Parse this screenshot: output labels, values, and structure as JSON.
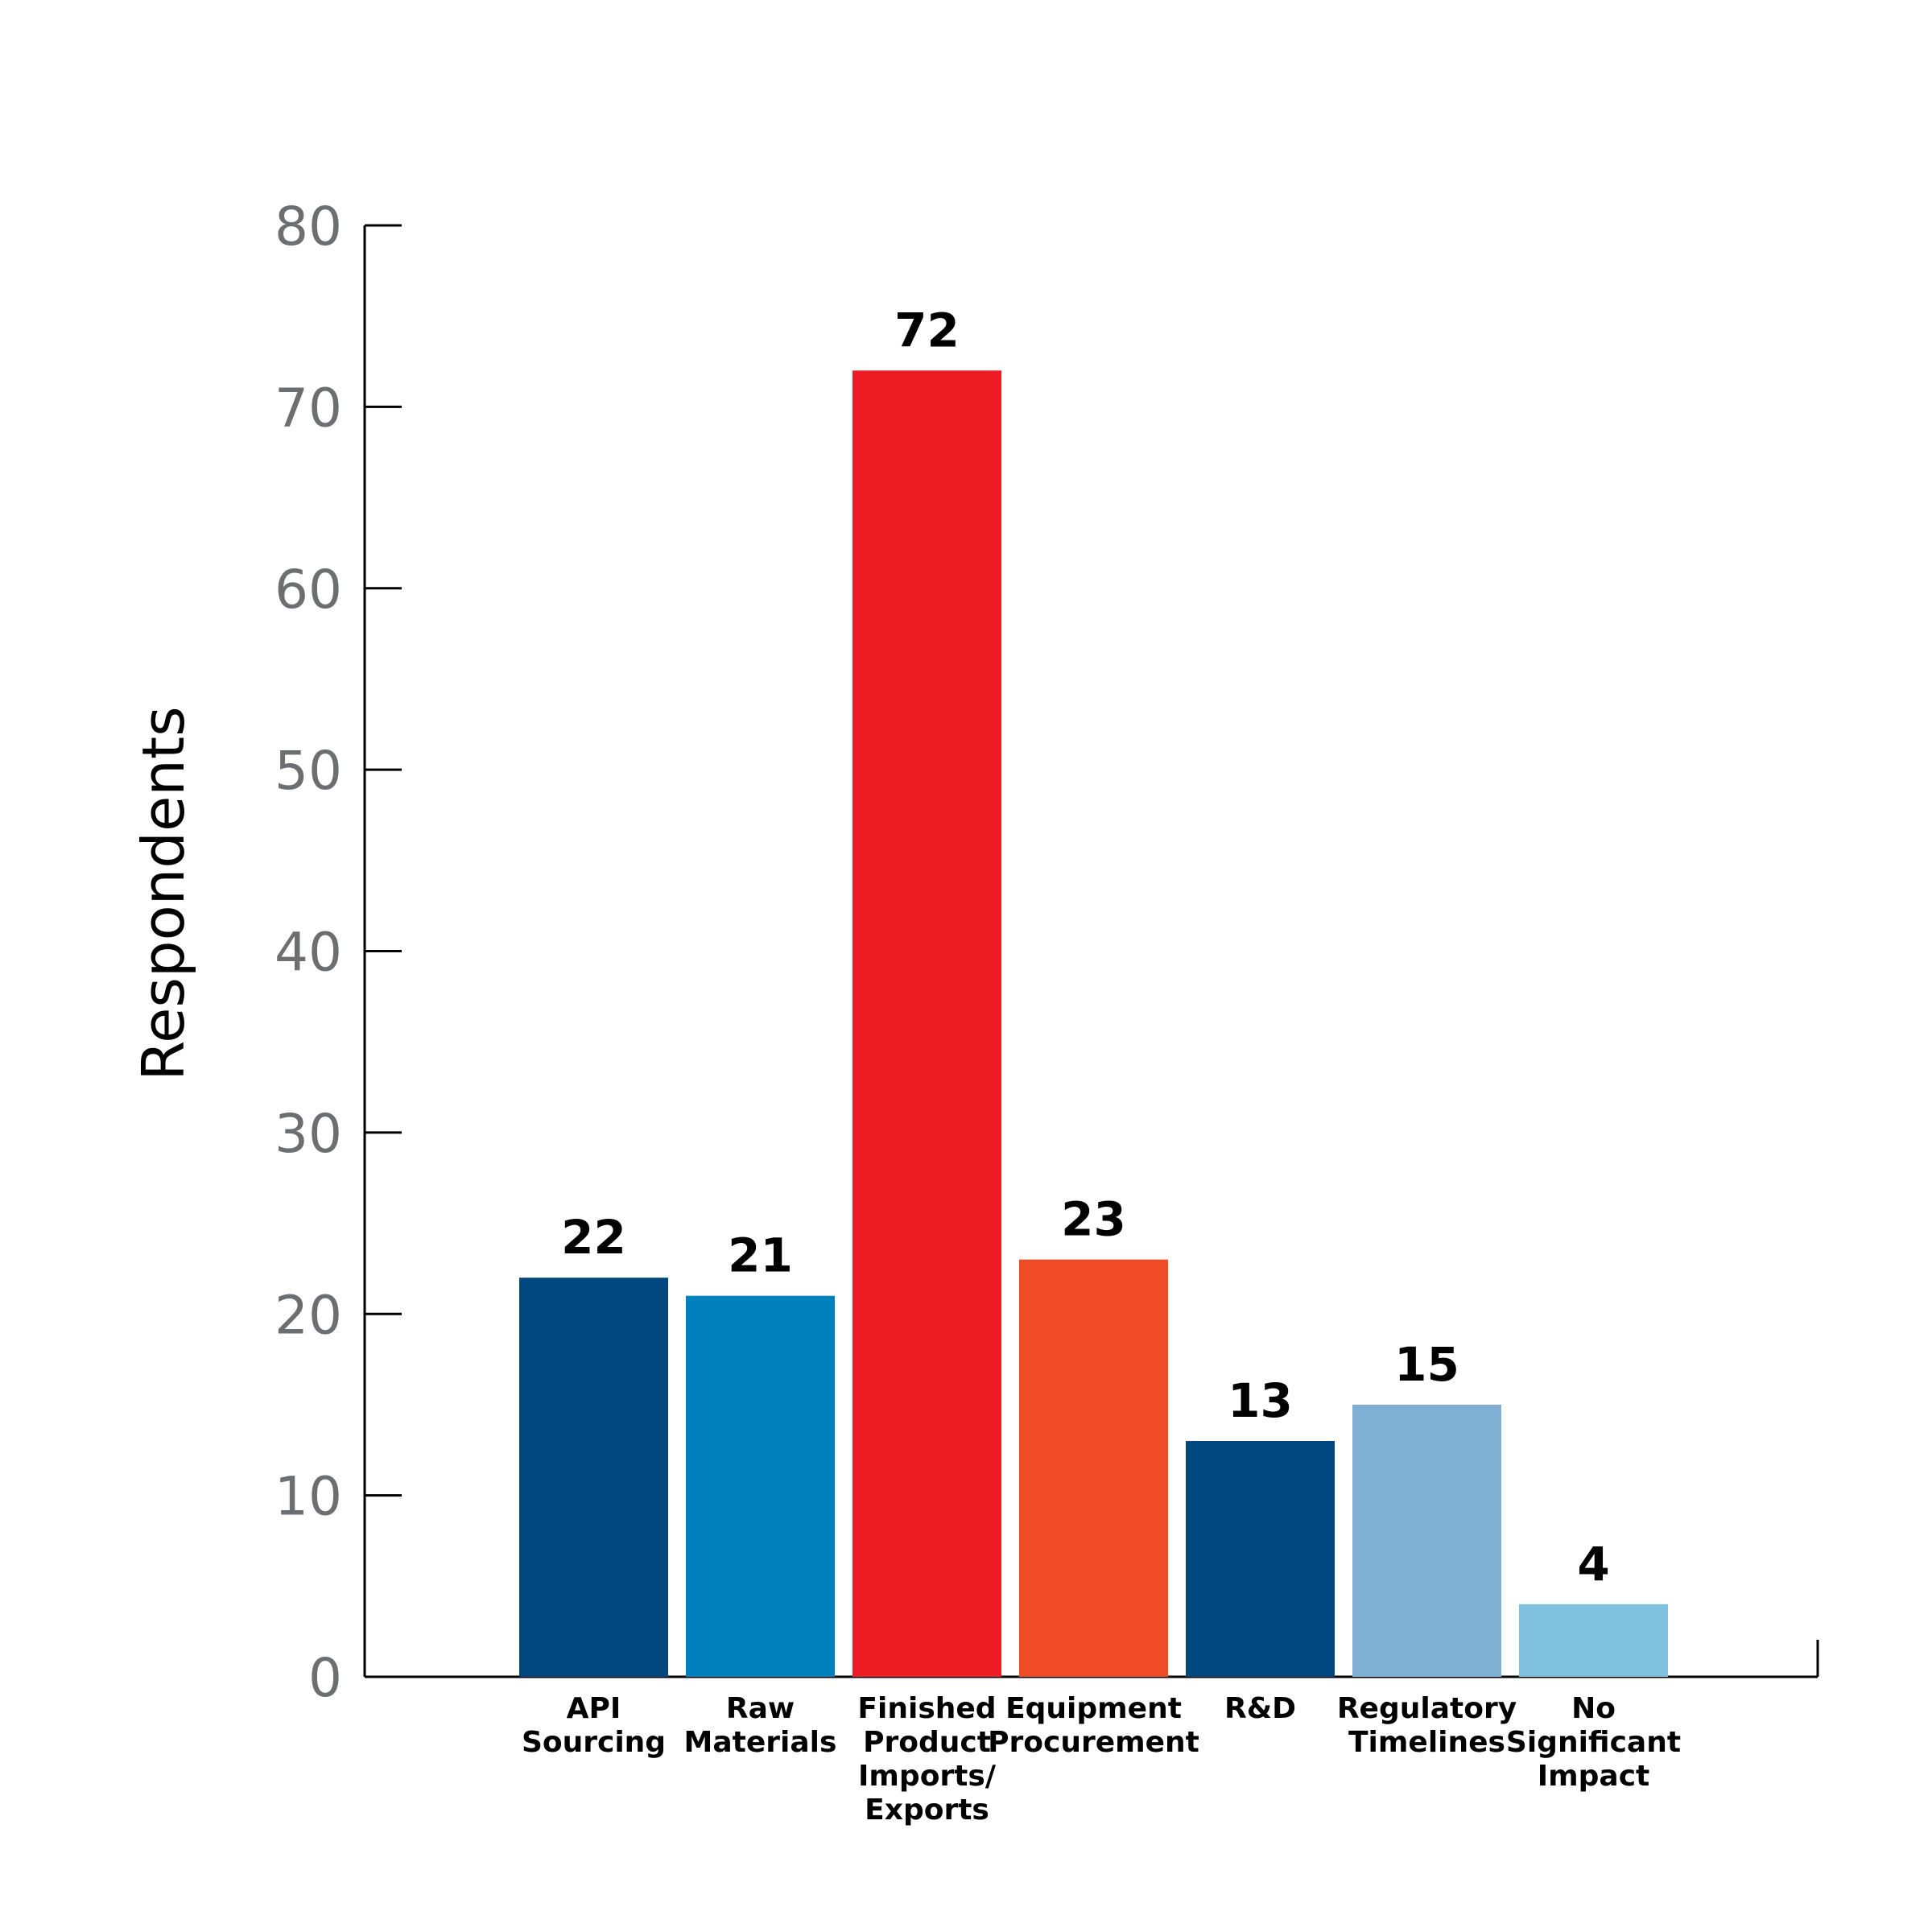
{
  "chart_data": {
    "type": "bar",
    "title": "",
    "xlabel": "",
    "ylabel": "Respondents",
    "ylim": [
      0,
      80
    ],
    "yticks": [
      0,
      10,
      20,
      30,
      40,
      50,
      60,
      70,
      80
    ],
    "grid": false,
    "legend": "none",
    "categories": [
      [
        "API",
        "Sourcing"
      ],
      [
        "Raw",
        "Materials"
      ],
      [
        "Finished",
        "Product",
        "Imports/",
        "Exports"
      ],
      [
        "Equipment",
        "Procurement"
      ],
      [
        "R&D"
      ],
      [
        "Regulatory",
        "Timelines"
      ],
      [
        "No",
        "Significant",
        "Impact"
      ]
    ],
    "values": [
      22,
      21,
      72,
      23,
      13,
      15,
      4
    ],
    "data_labels": [
      "22",
      "21",
      "72",
      "23",
      "13",
      "15",
      "4"
    ],
    "colors": [
      "#00467f",
      "#0081bd",
      "#ed1c24",
      "#ef4b27",
      "#00467f",
      "#80b0d3",
      "#80c1df"
    ]
  }
}
